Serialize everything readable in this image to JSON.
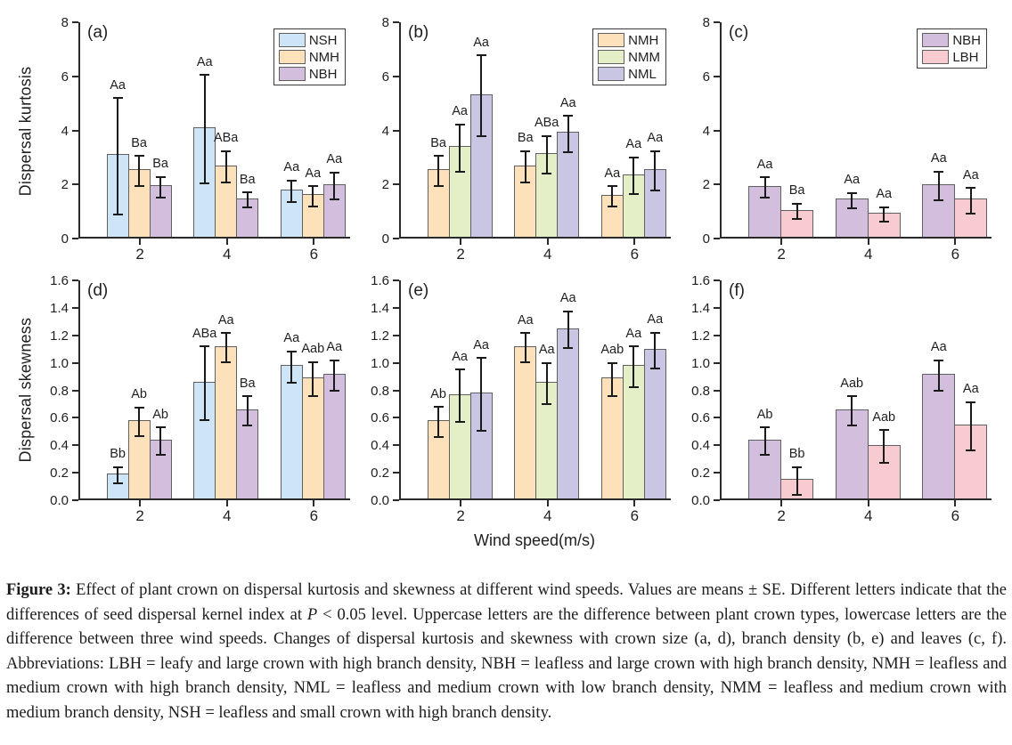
{
  "figure": {
    "y_labels": [
      "Dispersal kurtosis",
      "Dispersal skewness"
    ],
    "x_axis_label": "Wind speed(m/s)"
  },
  "colors": {
    "NSH": "#cde5f6",
    "NMH": "#fce1ba",
    "NBH": "#d4bedd",
    "NMM": "#e4eec7",
    "NML": "#c9c6e4",
    "LBH": "#f8cbd1",
    "axis": "#2a2a2a",
    "bar_border": "#606060",
    "error_bar": "#1a1a1a"
  },
  "chart_data": [
    {
      "type": "bar",
      "panel": "(a)",
      "ylabel": "Dispersal kurtosis",
      "xlabel": "",
      "ylim": [
        0,
        8
      ],
      "yticks": [
        "0",
        "2",
        "4",
        "6",
        "8"
      ],
      "categories": [
        "2",
        "4",
        "6"
      ],
      "grid": false,
      "legend": true,
      "legend_position": "top-right",
      "series": [
        {
          "name": "NSH",
          "values": [
            3.05,
            4.05,
            1.75
          ],
          "errors": [
            2.15,
            2.0,
            0.4
          ],
          "sig_labels": [
            "Aa",
            "Aa",
            "Aa"
          ]
        },
        {
          "name": "NMH",
          "values": [
            2.5,
            2.65,
            1.57
          ],
          "errors": [
            0.55,
            0.58,
            0.37
          ],
          "sig_labels": [
            "Ba",
            "ABa",
            "Aa"
          ]
        },
        {
          "name": "NBH",
          "values": [
            1.9,
            1.42,
            1.95
          ],
          "errors": [
            0.38,
            0.28,
            0.5
          ],
          "sig_labels": [
            "Ba",
            "Ba",
            "Aa"
          ]
        }
      ]
    },
    {
      "type": "bar",
      "panel": "(b)",
      "ylabel": "",
      "xlabel": "",
      "ylim": [
        0,
        8
      ],
      "yticks": [
        "0",
        "2",
        "4",
        "6",
        "8"
      ],
      "categories": [
        "2",
        "4",
        "6"
      ],
      "grid": false,
      "legend": true,
      "legend_position": "top-right",
      "series": [
        {
          "name": "NMH",
          "values": [
            2.5,
            2.65,
            1.55
          ],
          "errors": [
            0.56,
            0.58,
            0.38
          ],
          "sig_labels": [
            "Ba",
            "Ba",
            "Aa"
          ]
        },
        {
          "name": "NMM",
          "values": [
            3.35,
            3.1,
            2.32
          ],
          "errors": [
            0.87,
            0.7,
            0.68
          ],
          "sig_labels": [
            "Aa",
            "ABa",
            "Aa"
          ]
        },
        {
          "name": "NML",
          "values": [
            5.28,
            3.87,
            2.5
          ],
          "errors": [
            1.5,
            0.67,
            0.73
          ],
          "sig_labels": [
            "Aa",
            "Aa",
            "Aa"
          ]
        }
      ]
    },
    {
      "type": "bar",
      "panel": "(c)",
      "ylabel": "",
      "xlabel": "",
      "ylim": [
        0,
        8
      ],
      "yticks": [
        "0",
        "2",
        "4",
        "6",
        "8"
      ],
      "categories": [
        "2",
        "4",
        "6"
      ],
      "grid": false,
      "legend": true,
      "legend_position": "top-right",
      "series": [
        {
          "name": "NBH",
          "values": [
            1.88,
            1.4,
            1.95
          ],
          "errors": [
            0.38,
            0.28,
            0.52
          ],
          "sig_labels": [
            "Aa",
            "Aa",
            "Aa"
          ]
        },
        {
          "name": "LBH",
          "values": [
            1.0,
            0.9,
            1.4
          ],
          "errors": [
            0.29,
            0.26,
            0.47
          ],
          "sig_labels": [
            "Ba",
            "Aa",
            "Aa"
          ]
        }
      ]
    },
    {
      "type": "bar",
      "panel": "(d)",
      "ylabel": "Dispersal skewness",
      "xlabel": "",
      "ylim": [
        0,
        1.6
      ],
      "yticks": [
        "0.0",
        "0.2",
        "0.4",
        "0.6",
        "0.8",
        "1.0",
        "1.2",
        "1.4",
        "1.6"
      ],
      "categories": [
        "2",
        "4",
        "6"
      ],
      "grid": false,
      "legend": false,
      "legend_position": "",
      "series": [
        {
          "name": "NSH",
          "values": [
            0.18,
            0.85,
            0.97
          ],
          "errors": [
            0.06,
            0.27,
            0.115
          ],
          "sig_labels": [
            "Bb",
            "ABa",
            "Aa"
          ]
        },
        {
          "name": "NMH",
          "values": [
            0.57,
            1.11,
            0.88
          ],
          "errors": [
            0.105,
            0.105,
            0.125
          ],
          "sig_labels": [
            "Ab",
            "Aa",
            "Aab"
          ]
        },
        {
          "name": "NBH",
          "values": [
            0.43,
            0.65,
            0.91
          ],
          "errors": [
            0.1,
            0.105,
            0.11
          ],
          "sig_labels": [
            "Ab",
            "Ba",
            "Aa"
          ]
        }
      ]
    },
    {
      "type": "bar",
      "panel": "(e)",
      "ylabel": "",
      "xlabel": "Wind speed(m/s)",
      "ylim": [
        0,
        1.6
      ],
      "yticks": [
        "0.0",
        "0.2",
        "0.4",
        "0.6",
        "0.8",
        "1.0",
        "1.2",
        "1.4",
        "1.6"
      ],
      "categories": [
        "2",
        "4",
        "6"
      ],
      "grid": false,
      "legend": false,
      "legend_position": "",
      "series": [
        {
          "name": "NMH",
          "values": [
            0.57,
            1.11,
            0.88
          ],
          "errors": [
            0.11,
            0.105,
            0.12
          ],
          "sig_labels": [
            "Ab",
            "Aa",
            "Aab"
          ]
        },
        {
          "name": "NMM",
          "values": [
            0.76,
            0.85,
            0.97
          ],
          "errors": [
            0.19,
            0.15,
            0.15
          ],
          "sig_labels": [
            "Aa",
            "Aa",
            "Aa"
          ]
        },
        {
          "name": "NML",
          "values": [
            0.77,
            1.24,
            1.09
          ],
          "errors": [
            0.265,
            0.135,
            0.13
          ],
          "sig_labels": [
            "Aa",
            "Aa",
            "Aa"
          ]
        }
      ]
    },
    {
      "type": "bar",
      "panel": "(f)",
      "ylabel": "",
      "xlabel": "",
      "ylim": [
        0,
        1.6
      ],
      "yticks": [
        "0.0",
        "0.2",
        "0.4",
        "0.6",
        "0.8",
        "1.0",
        "1.2",
        "1.4",
        "1.6"
      ],
      "categories": [
        "2",
        "4",
        "6"
      ],
      "grid": false,
      "legend": false,
      "legend_position": "",
      "series": [
        {
          "name": "NBH",
          "values": [
            0.43,
            0.65,
            0.91
          ],
          "errors": [
            0.1,
            0.105,
            0.11
          ],
          "sig_labels": [
            "Ab",
            "Aab",
            "Aa"
          ]
        },
        {
          "name": "LBH",
          "values": [
            0.14,
            0.39,
            0.54
          ],
          "errors": [
            0.1,
            0.12,
            0.175
          ],
          "sig_labels": [
            "Bb",
            "Aab",
            "Aa"
          ]
        }
      ]
    }
  ],
  "caption": {
    "segments": [
      {
        "style": "bold",
        "text": "Figure 3:"
      },
      {
        "style": "normal",
        "text": " Effect of plant crown on dispersal kurtosis and skewness at different wind speeds. Values are means ± SE. Different letters indicate that the differences of seed dispersal kernel index at "
      },
      {
        "style": "italic",
        "text": "P"
      },
      {
        "style": "normal",
        "text": " < 0.05 level. Uppercase letters are the difference between plant crown types, lowercase letters are the difference between three wind speeds. Changes of dispersal kurtosis and skewness with crown size (a, d), branch density (b, e) and leaves (c, f). Abbreviations: LBH = leafy and large crown with high branch density, NBH = leafless and large crown with high branch density, NMH = leafless and medium crown with high branch density, NML = leafless and medium crown with low branch density, NMM = leafless and medium crown with medium branch density, NSH = leafless and small crown with high branch density."
      }
    ]
  }
}
